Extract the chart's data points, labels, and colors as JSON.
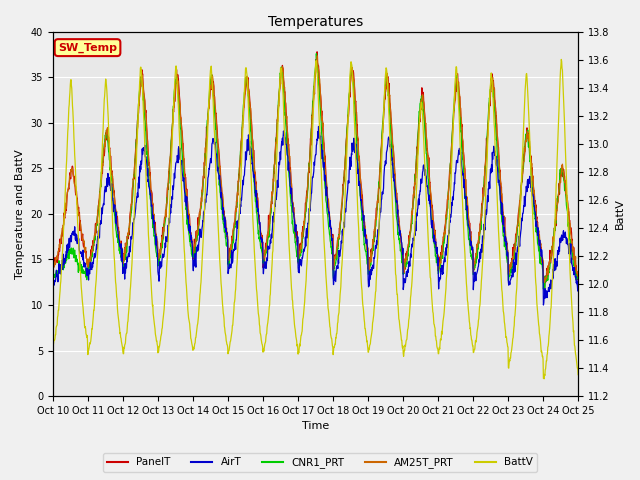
{
  "title": "Temperatures",
  "ylabel_left": "Temperature and BattV",
  "ylabel_right": "BattV",
  "xlabel": "Time",
  "ylim_left": [
    0,
    40
  ],
  "ylim_right": [
    11.2,
    13.8
  ],
  "background_color": "#f0f0f0",
  "plot_bg_color": "#e8e8e8",
  "grid_color": "#ffffff",
  "sw_temp_label": "SW_Temp",
  "sw_temp_color": "#cc0000",
  "sw_temp_bg": "#ffff99",
  "legend_entries": [
    "PanelT",
    "AirT",
    "CNR1_PRT",
    "AM25T_PRT",
    "BattV"
  ],
  "legend_colors": [
    "#cc0000",
    "#0000cc",
    "#00cc00",
    "#cc6600",
    "#cccc00"
  ],
  "x_tick_labels": [
    "Oct 10",
    "Oct 11",
    "Oct 12",
    "Oct 13",
    "Oct 14",
    "Oct 15",
    "Oct 16",
    "Oct 17",
    "Oct 18",
    "Oct 19",
    "Oct 20",
    "Oct 21",
    "Oct 22",
    "Oct 23",
    "Oct 24",
    "Oct 25"
  ],
  "n_days": 15,
  "pts_per_day": 96,
  "day_peaks_panel": [
    25,
    29,
    35,
    35,
    35,
    35,
    36,
    37,
    36,
    35,
    33,
    35,
    35,
    29,
    25
  ],
  "day_peaks_air": [
    18,
    24,
    27,
    27,
    28,
    28,
    29,
    29,
    28,
    28,
    25,
    27,
    27,
    24,
    18
  ],
  "day_peaks_cnr1": [
    16,
    29,
    35,
    35,
    35,
    35,
    36,
    37,
    36,
    35,
    33,
    35,
    35,
    29,
    25
  ],
  "day_peaks_am25": [
    25,
    29,
    35,
    35,
    35,
    35,
    36,
    37,
    36,
    35,
    33,
    35,
    35,
    29,
    25
  ],
  "night_lows_temp": [
    13,
    13,
    13,
    13,
    14,
    13,
    13,
    13,
    12,
    12,
    12,
    12,
    12,
    12,
    11
  ],
  "batt_peaks": [
    13.45,
    13.45,
    13.55,
    13.55,
    13.55,
    13.55,
    13.55,
    13.6,
    13.6,
    13.55,
    13.3,
    13.55,
    13.5,
    13.5,
    13.6
  ],
  "batt_lows": [
    11.45,
    11.4,
    11.4,
    11.4,
    11.4,
    11.4,
    11.4,
    11.4,
    11.4,
    11.4,
    11.4,
    11.4,
    11.4,
    11.3,
    11.2
  ]
}
